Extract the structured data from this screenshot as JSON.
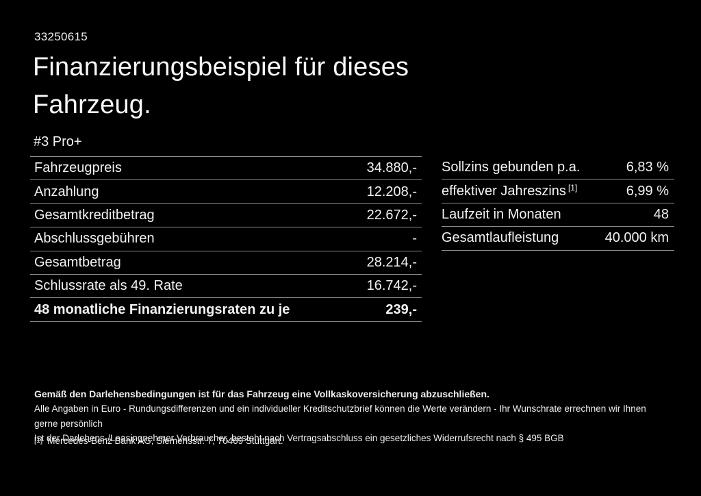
{
  "page": {
    "background_color": "#000000",
    "text_color": "#f2f2f2",
    "divider_color": "#8e8e8e"
  },
  "header": {
    "doc_number": "33250615",
    "title_line1": "Finanzierungsbeispiel für dieses",
    "title_line2": "Fahrzeug.",
    "model": "#3 Pro+"
  },
  "finance_table": {
    "rows": [
      {
        "label": "Fahrzeugpreis",
        "value": "34.880,-"
      },
      {
        "label": "Anzahlung",
        "value": "12.208,-"
      },
      {
        "label": "Gesamtkreditbetrag",
        "value": "22.672,-"
      },
      {
        "label": "Abschlussgebühren",
        "value": "-"
      },
      {
        "label": "Gesamtbetrag",
        "value": "28.214,-"
      },
      {
        "label": "Schlussrate als 49. Rate",
        "value": "16.742,-"
      },
      {
        "label": "48 monatliche Finanzierungsraten zu je",
        "value": "239,-",
        "bold": true
      }
    ]
  },
  "conditions_table": {
    "rows": [
      {
        "label": "Sollzins gebunden p.a.",
        "value": "6,83 %"
      },
      {
        "label": "effektiver Jahreszins",
        "label_sup": "[1]",
        "value": "6,99 %"
      },
      {
        "label": "Laufzeit in Monaten",
        "value": "48"
      },
      {
        "label": "Gesamtlaufleistung",
        "value": "40.000 km"
      }
    ]
  },
  "disclaimer": {
    "line_bold": "Gemäß den Darlehensbedingungen ist für das Fahrzeug eine Vollkaskoversicherung abzuschließen.",
    "line2": "Alle Angaben in Euro - Rundungsdifferenzen und ein individueller Kreditschutzbrief können die Werte verändern - Ihr Wunschrate errechnen wir Ihnen gerne persönlich",
    "line3": "Ist der Darlehens-/Leasingnehmer Verbraucher, besteht nach Vertragsabschluss ein gesetzliches Widerrufsrecht nach § 495 BGB"
  },
  "footnote": {
    "marker": "[1]",
    "text": "Mercedes-Benz Bank AG, Siemensstr. 7, 70469 Stuttgart."
  }
}
